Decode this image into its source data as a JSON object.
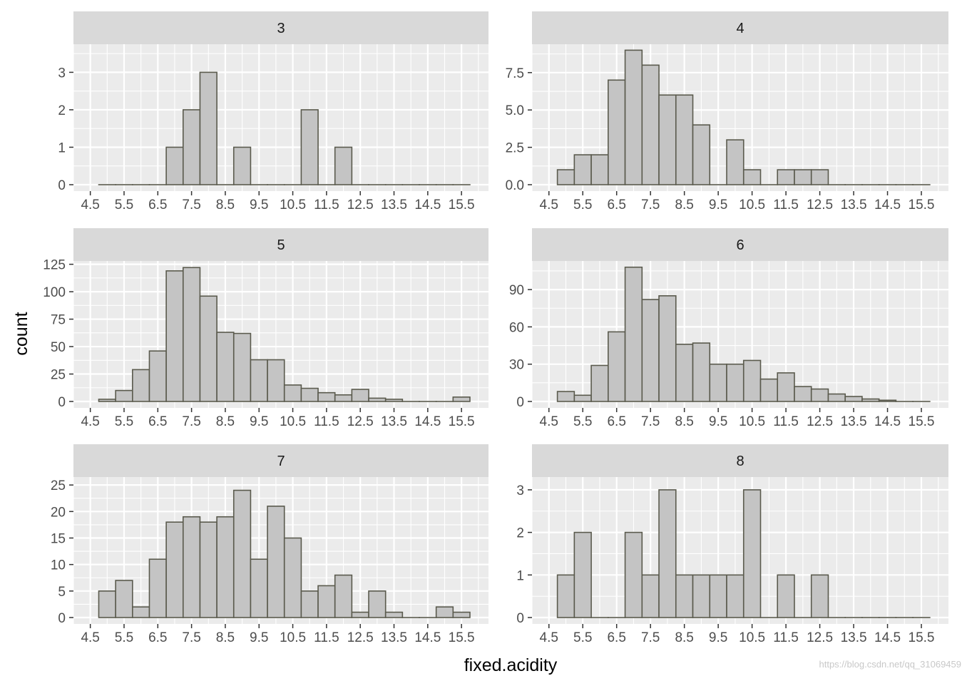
{
  "chart_data": {
    "type": "bar",
    "xlabel": "fixed.acidity",
    "ylabel": "count",
    "x_breaks": [
      "4.5",
      "5.5",
      "6.5",
      "7.5",
      "8.5",
      "9.5",
      "10.5",
      "11.5",
      "12.5",
      "13.5",
      "14.5",
      "15.5"
    ],
    "bin_start": 4.75,
    "bin_width": 0.5,
    "xlim": [
      4.0,
      16.3
    ],
    "colors": {
      "bar_fill": "#c4c4c4",
      "bar_outline": "#5a5a4d",
      "panel_bg": "#ebebeb",
      "strip_bg": "#d9d9d9",
      "grid": "#ffffff"
    },
    "grid": true,
    "facets": [
      {
        "label": "3",
        "ylim": [
          0,
          3.75
        ],
        "y_ticks": [
          0,
          1,
          2,
          3
        ],
        "y_tick_labels": [
          "0",
          "1",
          "2",
          "3"
        ],
        "values": [
          0,
          0,
          0,
          0,
          1,
          2,
          3,
          0,
          1,
          0,
          0,
          0,
          2,
          0,
          1,
          0,
          0,
          0,
          0,
          0,
          0,
          0
        ]
      },
      {
        "label": "4",
        "ylim": [
          0,
          9.4
        ],
        "y_ticks": [
          0,
          2.5,
          5,
          7.5
        ],
        "y_tick_labels": [
          "0.0",
          "2.5",
          "5.0",
          "7.5"
        ],
        "values": [
          1,
          2,
          2,
          7,
          9,
          8,
          6,
          6,
          4,
          0,
          3,
          1,
          0,
          1,
          1,
          1,
          0,
          0,
          0,
          0,
          0,
          0
        ]
      },
      {
        "label": "5",
        "ylim": [
          0,
          128
        ],
        "y_ticks": [
          0,
          25,
          50,
          75,
          100,
          125
        ],
        "y_tick_labels": [
          "0",
          "25",
          "50",
          "75",
          "100",
          "125"
        ],
        "values": [
          2,
          10,
          29,
          46,
          119,
          122,
          96,
          63,
          62,
          38,
          38,
          15,
          12,
          8,
          6,
          11,
          3,
          2,
          0,
          0,
          0,
          4
        ]
      },
      {
        "label": "6",
        "ylim": [
          0,
          113
        ],
        "y_ticks": [
          0,
          30,
          60,
          90
        ],
        "y_tick_labels": [
          "0",
          "30",
          "60",
          "90"
        ],
        "values": [
          8,
          5,
          29,
          56,
          108,
          82,
          85,
          46,
          47,
          30,
          30,
          33,
          18,
          23,
          12,
          10,
          6,
          4,
          2,
          1,
          0,
          0
        ]
      },
      {
        "label": "7",
        "ylim": [
          0,
          26.5
        ],
        "y_ticks": [
          0,
          5,
          10,
          15,
          20,
          25
        ],
        "y_tick_labels": [
          "0",
          "5",
          "10",
          "15",
          "20",
          "25"
        ],
        "values": [
          5,
          7,
          2,
          11,
          18,
          19,
          18,
          19,
          24,
          11,
          21,
          15,
          5,
          6,
          8,
          1,
          5,
          1,
          0,
          0,
          2,
          1
        ]
      },
      {
        "label": "8",
        "ylim": [
          0,
          3.3
        ],
        "y_ticks": [
          0,
          1,
          2,
          3
        ],
        "y_tick_labels": [
          "0",
          "1",
          "2",
          "3"
        ],
        "values": [
          1,
          2,
          0,
          0,
          2,
          1,
          3,
          1,
          1,
          1,
          1,
          3,
          0,
          1,
          0,
          1,
          0,
          0,
          0,
          0,
          0,
          0
        ]
      }
    ]
  },
  "watermark": "https://blog.csdn.net/qq_31069459"
}
